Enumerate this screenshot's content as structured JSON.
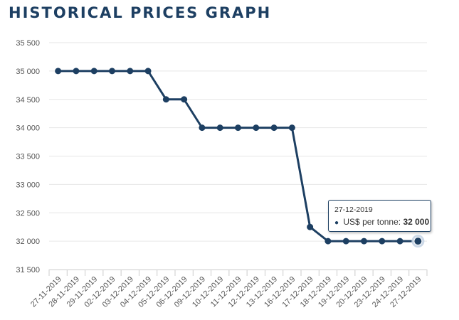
{
  "page": {
    "title": "HISTORICAL PRICES GRAPH"
  },
  "colors": {
    "line": "#1d3f62",
    "grid": "#e6e6e6",
    "axis": "#cccccc",
    "highlight": "#c5d4e4"
  },
  "tooltip": {
    "date": "27-12-2019",
    "series_label": "US$ per tonne:",
    "value": "32 000"
  },
  "chart_data": {
    "type": "line",
    "title": "",
    "xlabel": "",
    "ylabel": "",
    "ylim": [
      31500,
      35500
    ],
    "y_ticks": [
      31500,
      32000,
      32500,
      33000,
      33500,
      34000,
      34500,
      35000,
      35500
    ],
    "y_tick_labels": [
      "31 500",
      "32 000",
      "32 500",
      "33 000",
      "33 500",
      "34 000",
      "34 500",
      "35 000",
      "35 500"
    ],
    "grid": true,
    "legend": "none",
    "categories": [
      "27-11-2019",
      "28-11-2019",
      "29-11-2019",
      "02-12-2019",
      "03-12-2019",
      "04-12-2019",
      "05-12-2019",
      "06-12-2019",
      "09-12-2019",
      "10-12-2019",
      "11-12-2019",
      "12-12-2019",
      "13-12-2019",
      "16-12-2019",
      "17-12-2019",
      "18-12-2019",
      "19-12-2019",
      "20-12-2019",
      "23-12-2019",
      "24-12-2019",
      "27-12-2019"
    ],
    "series": [
      {
        "name": "US$ per tonne",
        "values": [
          35000,
          35000,
          35000,
          35000,
          35000,
          35000,
          34500,
          34500,
          34000,
          34000,
          34000,
          34000,
          34000,
          34000,
          32250,
          32000,
          32000,
          32000,
          32000,
          32000,
          32000
        ]
      }
    ],
    "highlighted_index": 20
  }
}
